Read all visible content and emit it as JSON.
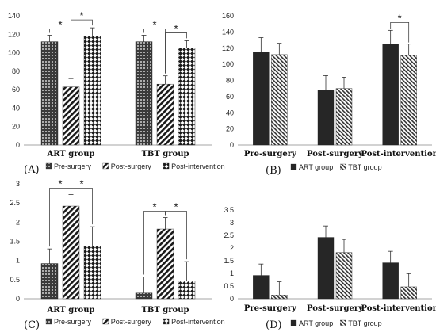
{
  "chart_data": [
    {
      "type": "bar",
      "panel": "(A)",
      "categories": [
        "ART group",
        "TBT group"
      ],
      "series": [
        {
          "name": "Pre-surgery",
          "values": [
            112,
            112
          ],
          "err": [
            7,
            7
          ]
        },
        {
          "name": "Post-surgery",
          "values": [
            63,
            66
          ],
          "err": [
            9,
            9
          ]
        },
        {
          "name": "Post-intervention",
          "values": [
            118,
            105
          ],
          "err": [
            9,
            8
          ]
        }
      ],
      "ylim": [
        0,
        140
      ],
      "yticks": [
        0,
        20,
        40,
        60,
        80,
        100,
        120,
        140
      ],
      "significance": [
        "*",
        "*",
        "*",
        "*"
      ],
      "legend": "bottom"
    },
    {
      "type": "bar",
      "panel": "(B)",
      "categories": [
        "Pre-surgery",
        "Post-surgery",
        "Post-intervention"
      ],
      "series": [
        {
          "name": "ART group",
          "values": [
            115,
            68,
            125
          ],
          "err": [
            18,
            18,
            17
          ]
        },
        {
          "name": "TBT group",
          "values": [
            112,
            70,
            111
          ],
          "err": [
            14,
            14,
            14
          ]
        }
      ],
      "ylim": [
        0,
        160
      ],
      "yticks": [
        0,
        20,
        40,
        60,
        80,
        100,
        120,
        140,
        160
      ],
      "significance": [
        "*"
      ],
      "legend": "bottom"
    },
    {
      "type": "bar",
      "panel": "(C)",
      "categories": [
        "ART group",
        "TBT group"
      ],
      "series": [
        {
          "name": "Pre-surgery",
          "values": [
            0.92,
            0.15
          ],
          "err": [
            0.38,
            0.42
          ]
        },
        {
          "name": "Post-surgery",
          "values": [
            2.42,
            1.82
          ],
          "err": [
            0.3,
            0.3
          ]
        },
        {
          "name": "Post-intervention",
          "values": [
            1.38,
            0.47
          ],
          "err": [
            0.5,
            0.5
          ]
        }
      ],
      "ylim": [
        0,
        3
      ],
      "yticks": [
        0,
        0.5,
        1,
        1.5,
        2,
        2.5,
        3
      ],
      "significance": [
        "*",
        "*",
        "*",
        "*"
      ],
      "legend": "bottom"
    },
    {
      "type": "bar",
      "panel": "(D)",
      "categories": [
        "Pre-surgery",
        "Post-surgery",
        "Post-intervention"
      ],
      "series": [
        {
          "name": "ART group",
          "values": [
            0.92,
            2.42,
            1.42
          ],
          "err": [
            0.45,
            0.45,
            0.45
          ]
        },
        {
          "name": "TBT group",
          "values": [
            0.15,
            1.82,
            0.47
          ],
          "err": [
            0.52,
            0.52,
            0.52
          ]
        }
      ],
      "ylim": [
        0,
        3.5
      ],
      "yticks": [
        0,
        0.5,
        1,
        1.5,
        2,
        2.5,
        3,
        3.5
      ],
      "legend": "bottom"
    }
  ]
}
